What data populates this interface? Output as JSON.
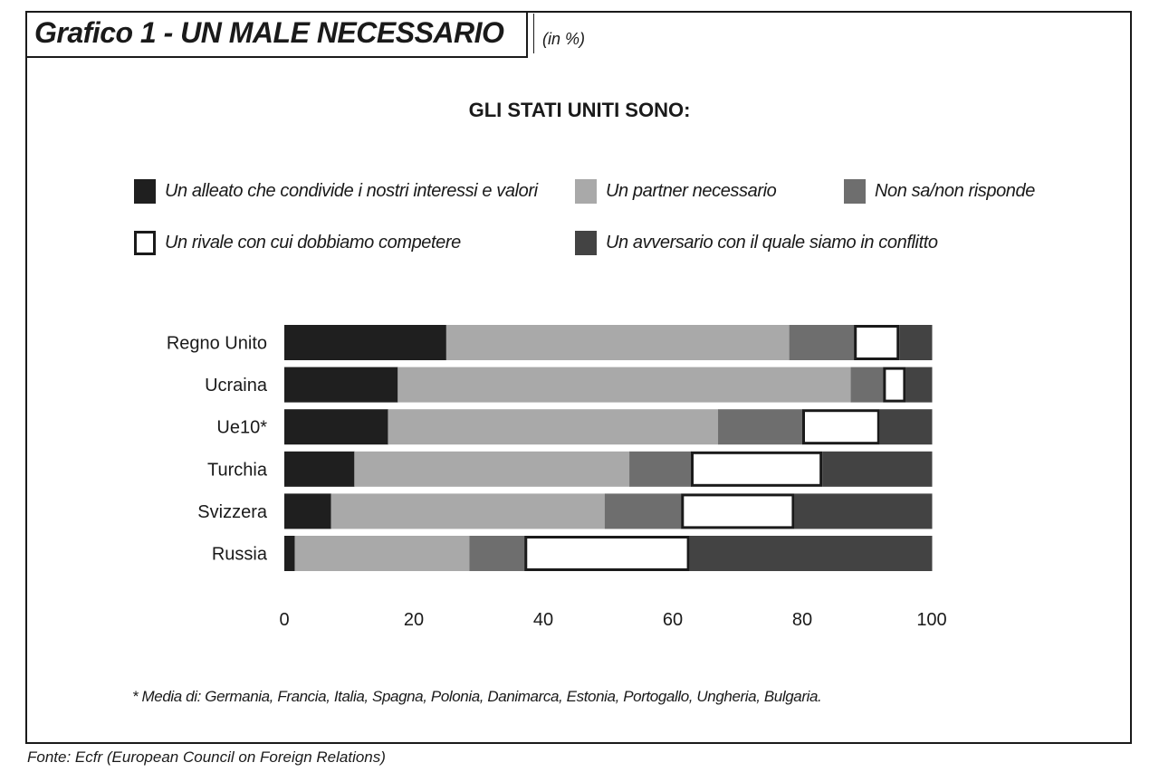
{
  "header": {
    "title": "Grafico 1 - UN MALE NECESSARIO",
    "unit": "(in %)"
  },
  "chart_data": {
    "type": "bar",
    "orientation": "horizontal",
    "stacked": true,
    "title": "GLI STATI UNITI SONO:",
    "categories": [
      "Regno Unito",
      "Ucraina",
      "Ue10*",
      "Turchia",
      "Svizzera",
      "Russia"
    ],
    "series": [
      {
        "name": "Un alleato che condivide i nostri interessi e valori",
        "color": "#1f1f1f",
        "values": [
          25,
          17.5,
          16,
          10.8,
          7.2,
          1.6
        ]
      },
      {
        "name": "Un partner necessario",
        "color": "#a9a9a9",
        "values": [
          53,
          70,
          51,
          42.5,
          42.3,
          27
        ]
      },
      {
        "name": "Non sa/non risponde",
        "color": "#6e6e6e",
        "values": [
          10,
          5,
          13,
          9.5,
          11.8,
          8.5
        ]
      },
      {
        "name": "Un rivale con cui dobbiamo competere",
        "color": "#ffffff",
        "values": [
          7,
          3.5,
          12,
          20.3,
          17.5,
          25.5
        ]
      },
      {
        "name": "Un avversario con il quale siamo in conflitto",
        "color": "#434343",
        "values": [
          5,
          4,
          8,
          16.9,
          21.2,
          37.4
        ]
      }
    ],
    "xlim": [
      0,
      100
    ],
    "xticks": [
      0,
      20,
      40,
      60,
      80,
      100
    ],
    "legend_position": "top",
    "grid": false
  },
  "footnote": "* Media di: Germania, Francia, Italia, Spagna, Polonia, Danimarca, Estonia, Portogallo, Ungheria, Bulgaria.",
  "source": "Fonte: Ecfr (European Council on Foreign Relations)"
}
